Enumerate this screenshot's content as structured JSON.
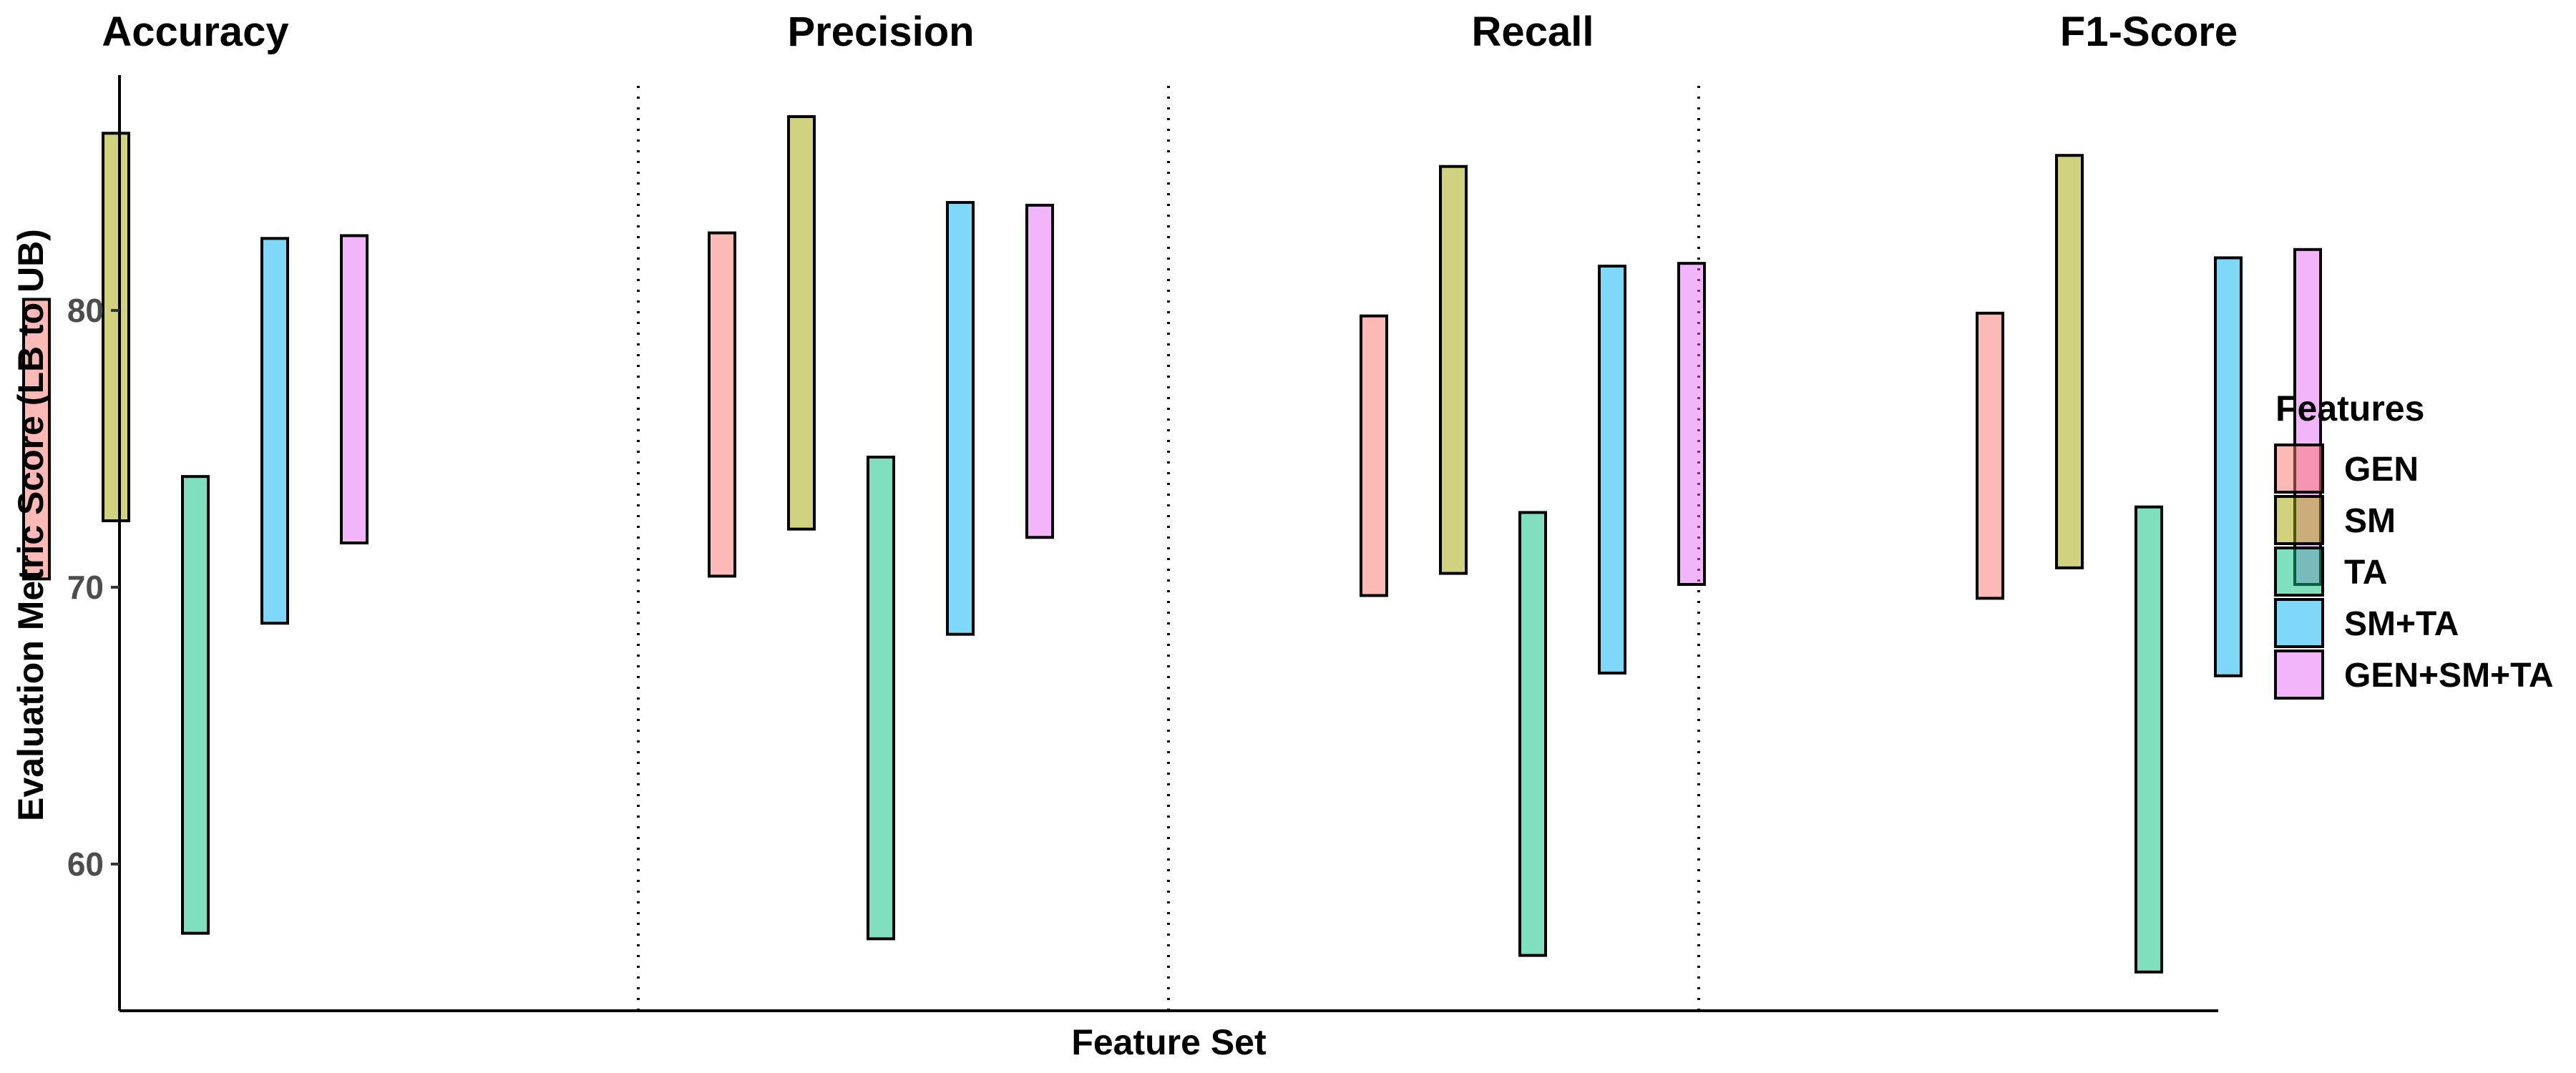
{
  "chart_data": {
    "type": "bar",
    "subtype": "floating-range",
    "panels": [
      "Accuracy",
      "Precision",
      "Recall",
      "F1-Score"
    ],
    "xlabel": "Feature Set",
    "ylabel": "Evaluation Metric Score (LB to UB)",
    "ylim": [
      54.7,
      88.5
    ],
    "yticks": [
      60,
      70,
      80
    ],
    "grid": false,
    "panel_separator": "dotted",
    "legend": {
      "title": "Features",
      "position": "right"
    },
    "series": [
      {
        "name": "GEN",
        "color": "#F8766D",
        "ranges": [
          [
            70.3,
            80.4
          ],
          [
            70.4,
            82.8
          ],
          [
            69.7,
            79.8
          ],
          [
            69.6,
            79.9
          ]
        ]
      },
      {
        "name": "SM",
        "color": "#A3A500",
        "ranges": [
          [
            72.4,
            86.4
          ],
          [
            72.1,
            87.0
          ],
          [
            70.5,
            85.2
          ],
          [
            70.7,
            85.6
          ]
        ]
      },
      {
        "name": "TA",
        "color": "#00BF7D",
        "ranges": [
          [
            57.5,
            74.0
          ],
          [
            57.3,
            74.7
          ],
          [
            56.7,
            72.7
          ],
          [
            56.1,
            72.9
          ]
        ]
      },
      {
        "name": "SM+TA",
        "color": "#00B0F6",
        "ranges": [
          [
            68.7,
            82.6
          ],
          [
            68.3,
            83.9
          ],
          [
            66.9,
            81.6
          ],
          [
            66.8,
            81.9
          ]
        ]
      },
      {
        "name": "GEN+SM+TA",
        "color": "#E76BF3",
        "ranges": [
          [
            71.6,
            82.7
          ],
          [
            71.8,
            83.8
          ],
          [
            70.1,
            81.7
          ],
          [
            70.1,
            82.2
          ]
        ]
      }
    ]
  }
}
